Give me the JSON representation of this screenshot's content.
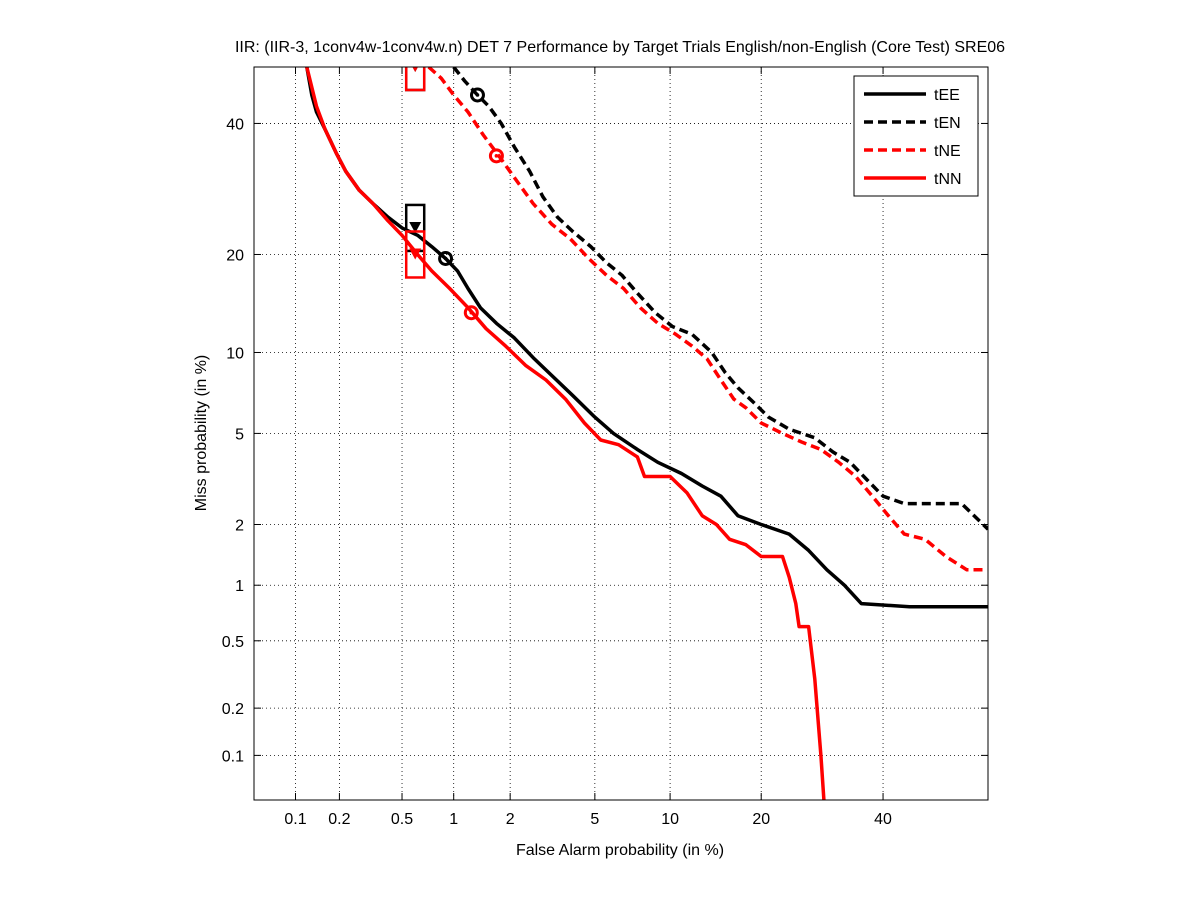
{
  "chart_data": {
    "type": "line",
    "title": "IIR: (IIR-3, 1conv4w-1conv4w.n) DET 7 Performance by Target Trials English/non-English (Core Test) SRE06",
    "xlabel": "False Alarm probability (in %)",
    "ylabel": "Miss probability (in %)",
    "x_scale": "probit",
    "y_scale": "probit",
    "xlim": [
      0.05,
      60
    ],
    "ylim": [
      0.05,
      50
    ],
    "x_ticks": [
      0.1,
      0.2,
      0.5,
      1,
      2,
      5,
      10,
      20,
      40
    ],
    "x_tick_labels": [
      "0.1",
      "0.2",
      "0.5",
      "1",
      "2",
      "5",
      "10",
      "20",
      "40"
    ],
    "y_ticks": [
      0.1,
      0.2,
      0.5,
      1,
      2,
      5,
      10,
      20,
      40
    ],
    "y_tick_labels": [
      "0.1",
      "0.2",
      "0.5",
      "1",
      "2",
      "5",
      "10",
      "20",
      "40"
    ],
    "grid": true,
    "legend_position": "top-right",
    "series": [
      {
        "name": "tEE",
        "color": "#000000",
        "dash": "solid",
        "points": [
          [
            0.12,
            50
          ],
          [
            0.13,
            45
          ],
          [
            0.14,
            42
          ],
          [
            0.16,
            39
          ],
          [
            0.19,
            35
          ],
          [
            0.22,
            32
          ],
          [
            0.27,
            29
          ],
          [
            0.33,
            27
          ],
          [
            0.41,
            25
          ],
          [
            0.5,
            23.5
          ],
          [
            0.62,
            22.5
          ],
          [
            0.75,
            21
          ],
          [
            0.9,
            19.5
          ],
          [
            1.05,
            18
          ],
          [
            1.2,
            16
          ],
          [
            1.4,
            14
          ],
          [
            1.7,
            12.5
          ],
          [
            2.1,
            11.2
          ],
          [
            2.6,
            9.6
          ],
          [
            3.2,
            8.3
          ],
          [
            4.0,
            7
          ],
          [
            5.0,
            5.8
          ],
          [
            6.0,
            5
          ],
          [
            7.5,
            4.3
          ],
          [
            9.0,
            3.8
          ],
          [
            11,
            3.4
          ],
          [
            13,
            3.0
          ],
          [
            15,
            2.7
          ],
          [
            17,
            2.2
          ],
          [
            20,
            2.0
          ],
          [
            24,
            1.8
          ],
          [
            27,
            1.5
          ],
          [
            30,
            1.2
          ],
          [
            33,
            1.0
          ],
          [
            36,
            0.8
          ],
          [
            45,
            0.77
          ],
          [
            60,
            0.77
          ]
        ]
      },
      {
        "name": "tEN",
        "color": "#000000",
        "dash": "dashed",
        "points": [
          [
            1.0,
            50
          ],
          [
            1.15,
            47.5
          ],
          [
            1.35,
            45
          ],
          [
            1.55,
            43
          ],
          [
            1.8,
            40
          ],
          [
            2.1,
            36
          ],
          [
            2.5,
            32
          ],
          [
            2.9,
            28
          ],
          [
            3.4,
            25
          ],
          [
            4.0,
            23
          ],
          [
            4.8,
            21
          ],
          [
            5.6,
            19
          ],
          [
            6.5,
            17.5
          ],
          [
            7.5,
            15.5
          ],
          [
            8.8,
            13.5
          ],
          [
            10.2,
            12.2
          ],
          [
            12,
            11.5
          ],
          [
            14,
            10
          ],
          [
            15.5,
            8.5
          ],
          [
            17,
            7.5
          ],
          [
            19,
            6.6
          ],
          [
            21,
            5.8
          ],
          [
            24,
            5.2
          ],
          [
            28,
            4.8
          ],
          [
            31,
            4.2
          ],
          [
            34,
            3.8
          ],
          [
            37,
            3.2
          ],
          [
            40,
            2.7
          ],
          [
            44,
            2.5
          ],
          [
            55,
            2.5
          ],
          [
            60,
            1.9
          ]
        ]
      },
      {
        "name": "tNE",
        "color": "#ff0000",
        "dash": "dashed",
        "points": [
          [
            0.72,
            50
          ],
          [
            0.85,
            48
          ],
          [
            1.0,
            45
          ],
          [
            1.2,
            42
          ],
          [
            1.45,
            38
          ],
          [
            1.75,
            34.5
          ],
          [
            2.1,
            31
          ],
          [
            2.6,
            27
          ],
          [
            3.2,
            24
          ],
          [
            3.9,
            22
          ],
          [
            4.7,
            19.5
          ],
          [
            5.6,
            17.5
          ],
          [
            6.6,
            16
          ],
          [
            7.7,
            14
          ],
          [
            9.0,
            12.5
          ],
          [
            10.5,
            11.5
          ],
          [
            12,
            10.5
          ],
          [
            13.5,
            9.5
          ],
          [
            15,
            8
          ],
          [
            16.5,
            6.8
          ],
          [
            18,
            6.3
          ],
          [
            20,
            5.5
          ],
          [
            23,
            5
          ],
          [
            26,
            4.6
          ],
          [
            29,
            4.3
          ],
          [
            32,
            3.8
          ],
          [
            35,
            3.3
          ],
          [
            38,
            2.7
          ],
          [
            41,
            2.2
          ],
          [
            44,
            1.8
          ],
          [
            48,
            1.7
          ],
          [
            52,
            1.4
          ],
          [
            56,
            1.2
          ],
          [
            60,
            1.2
          ]
        ]
      },
      {
        "name": "tNN",
        "color": "#ff0000",
        "dash": "solid",
        "points": [
          [
            0.12,
            50
          ],
          [
            0.14,
            43
          ],
          [
            0.16,
            39
          ],
          [
            0.19,
            35
          ],
          [
            0.22,
            32
          ],
          [
            0.27,
            29
          ],
          [
            0.33,
            27
          ],
          [
            0.41,
            24.5
          ],
          [
            0.5,
            22.5
          ],
          [
            0.62,
            20
          ],
          [
            0.75,
            18
          ],
          [
            0.95,
            16
          ],
          [
            1.2,
            14
          ],
          [
            1.5,
            12
          ],
          [
            1.9,
            10.5
          ],
          [
            2.4,
            9.0
          ],
          [
            3.0,
            8.0
          ],
          [
            3.7,
            6.8
          ],
          [
            4.5,
            5.5
          ],
          [
            5.3,
            4.7
          ],
          [
            6.3,
            4.5
          ],
          [
            7.5,
            4.0
          ],
          [
            8.0,
            3.3
          ],
          [
            10,
            3.3
          ],
          [
            11.5,
            2.8
          ],
          [
            13,
            2.2
          ],
          [
            14.5,
            2.0
          ],
          [
            16,
            1.7
          ],
          [
            18,
            1.6
          ],
          [
            20,
            1.4
          ],
          [
            23,
            1.4
          ],
          [
            24,
            1.1
          ],
          [
            25,
            0.8
          ],
          [
            25.5,
            0.6
          ],
          [
            27,
            0.6
          ],
          [
            28,
            0.3
          ],
          [
            29,
            0.1
          ],
          [
            29.5,
            0.05
          ]
        ]
      }
    ],
    "markers": [
      {
        "series": "tEE",
        "kind": "circle",
        "x": 0.9,
        "y": 19.5
      },
      {
        "series": "tEE",
        "kind": "box",
        "x": 0.6,
        "y": 23.5
      },
      {
        "series": "tEN",
        "kind": "circle",
        "x": 1.35,
        "y": 45
      },
      {
        "series": "tEN",
        "kind": "box",
        "x": 0.6,
        "y": 50
      },
      {
        "series": "tNE",
        "kind": "circle",
        "x": 1.7,
        "y": 34.5
      },
      {
        "series": "tNE",
        "kind": "box",
        "x": 0.6,
        "y": 50
      },
      {
        "series": "tNN",
        "kind": "circle",
        "x": 1.25,
        "y": 13.5
      },
      {
        "series": "tNN",
        "kind": "box",
        "x": 0.6,
        "y": 20
      }
    ]
  }
}
